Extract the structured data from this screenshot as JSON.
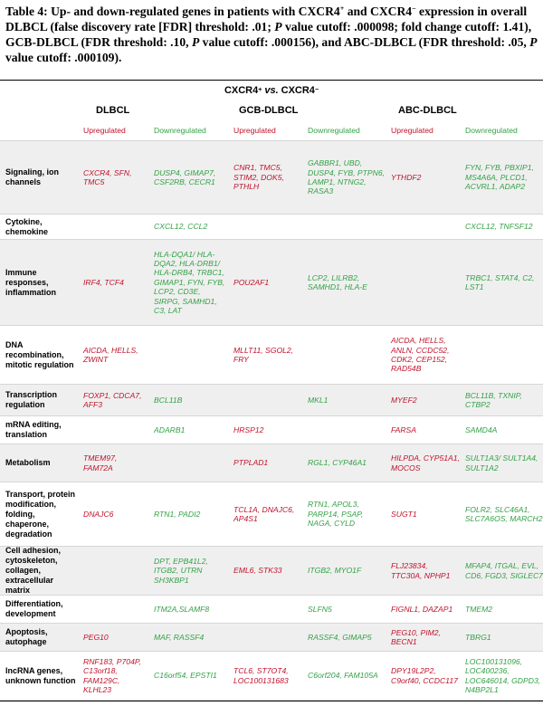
{
  "caption": {
    "p1": "Table 4: Up- and down-regulated genes in patients with CXCR4",
    "sup1": "+",
    "p2": " and CXCR4",
    "sup2": "−",
    "p3": " expression in overall DLBCL (false discovery rate [FDR] threshold: .01; ",
    "pv1": "P",
    "p4": " value cutoff: .000098; fold change cutoff: 1.41), GCB-DLBCL (FDR threshold: .10, ",
    "pv2": "P",
    "p5": " value cutoff: .000156), and ABC-DLBCL (FDR threshold: .05, ",
    "pv3": "P",
    "p6": " value cutoff: .000109)."
  },
  "header": {
    "left": "CXCR4",
    "left_sup": "+",
    "vs": "vs.",
    "right": "CXCR4",
    "right_sup": "−"
  },
  "groups": [
    "DLBCL",
    "GCB-DLBCL",
    "ABC-DLBCL"
  ],
  "subheaders": [
    "Upregulated",
    "Downregulated",
    "Upregulated",
    "Downregulated",
    "Upregulated",
    "Downregulated"
  ],
  "rows": [
    {
      "category": "Signaling, ion channels",
      "cells": [
        "CXCR4, SFN, TMC5",
        "DUSP4, GIMAP7, CSF2RB, CECR1",
        "CNR1, TMC5, STIM2, DOK5, PTHLH",
        "GABBR1, UBD, DUSP4, FYB, PTPN6, LAMP1, NTNG2, RASA3",
        "YTHDF2",
        "FYN, FYB, PBXIP1, MS4A6A, PLCD1, ACVRL1, ADAP2"
      ]
    },
    {
      "category": "Cytokine, chemokine",
      "cells": [
        "",
        "CXCL12, CCL2",
        "",
        "",
        "",
        "CXCL12, TNFSF12"
      ]
    },
    {
      "category": "Immune responses, inflammation",
      "cells": [
        "IRF4, TCF4",
        "HLA-DQA1/ HLA-DQA2, HLA-DRB1/ HLA-DRB4, TRBC1, GIMAP1, FYN, FYB, LCP2, CD3E, SIRPG, SAMHD1, C3, LAT",
        "POU2AF1",
        "LCP2, LILRB2, SAMHD1, HLA-E",
        "",
        "TRBC1, STAT4, C2, LST1"
      ]
    },
    {
      "category": "DNA recombination, mitotic regulation",
      "cells": [
        "AICDA, HELLS, ZWINT",
        "",
        "MLLT11, SGOL2, FRY",
        "",
        "AICDA, HELLS, ANLN, CCDC52, CDK2, CEP152, RAD54B",
        ""
      ]
    },
    {
      "category": "Transcription regulation",
      "cells": [
        "FOXP1, CDCA7, AFF3",
        "BCL11B",
        "",
        "MKL1",
        "MYEF2",
        "BCL11B, TXNIP, CTBP2"
      ]
    },
    {
      "category": "mRNA editing, translation",
      "cells": [
        "",
        "ADARB1",
        "HRSP12",
        "",
        "FARSA",
        "SAMD4A"
      ]
    },
    {
      "category": "Metabolism",
      "cells": [
        "TMEM97, FAM72A",
        "",
        "PTPLAD1",
        "RGL1, CYP46A1",
        "HILPDA, CYP51A1, MOCOS",
        "SULT1A3/ SULT1A4, SULT1A2"
      ]
    },
    {
      "category": "Transport, protein modification, folding, chaperone, degradation",
      "cells": [
        "DNAJC6",
        "RTN1, PADI2",
        "TCL1A, DNAJC6, AP4S1",
        "RTN1, APOL3, PARP14, PSAP, NAGA, CYLD",
        "SUGT1",
        "FOLR2, SLC46A1, SLC7A6OS, MARCH2"
      ]
    },
    {
      "category": "Cell adhesion, cytoskeleton, collagen, extracellular matrix",
      "cells": [
        "",
        "DPT, EPB41L2, ITGB2, UTRN SH3KBP1",
        "EML6, STK33",
        "ITGB2, MYO1F",
        "FLJ23834, TTC30A, NPHP1",
        "MFAP4, ITGAL, EVL, CD6, FGD3, SIGLEC7"
      ]
    },
    {
      "category": "Differentiation, development",
      "cells": [
        "",
        "ITM2A,SLAMF8",
        "",
        "SLFN5",
        "FIGNL1, DAZAP1",
        "TMEM2"
      ]
    },
    {
      "category": "Apoptosis, autophage",
      "cells": [
        "PEG10",
        "MAF, RASSF4",
        "",
        "RASSF4, GIMAP5",
        "PEG10, PIM2, BECN1",
        "TBRG1"
      ]
    },
    {
      "category": "lncRNA genes, unknown function",
      "cells": [
        "RNF183, P704P, C13orf18, FAM129C, KLHL23",
        "C16orf54, EPSTI1",
        "TCL6, ST7OT4, LOC100131683",
        "C6orf204, FAM105A",
        "DPY19L2P2, C9orf40, CCDC117",
        "LOC100131096, LOC400236, LOC646014, GDPD3, N4BP2L1"
      ]
    }
  ]
}
